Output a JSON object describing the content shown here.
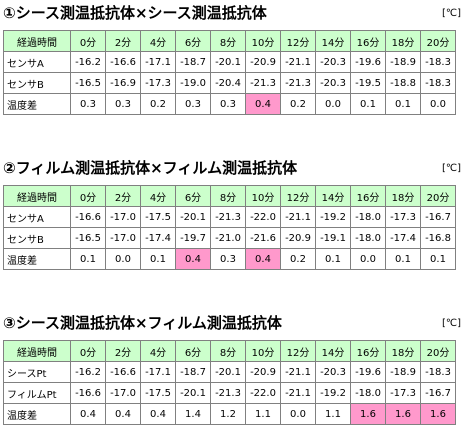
{
  "colors": {
    "header_bg": "#ccffcc",
    "highlight_bg": "#ff99cc",
    "border": "#808080"
  },
  "sections": [
    {
      "title": "①シース測温抵抗体×シース測温抵抗体",
      "unit": "[℃]",
      "header": [
        "経過時間",
        "0分",
        "2分",
        "4分",
        "6分",
        "8分",
        "10分",
        "12分",
        "14分",
        "16分",
        "18分",
        "20分"
      ],
      "rows": [
        {
          "label": "センサA",
          "values": [
            "-16.2",
            "-16.6",
            "-17.1",
            "-18.7",
            "-20.1",
            "-20.9",
            "-21.1",
            "-20.3",
            "-19.6",
            "-18.9",
            "-18.3"
          ]
        },
        {
          "label": "センサB",
          "values": [
            "-16.5",
            "-16.9",
            "-17.3",
            "-19.0",
            "-20.4",
            "-21.3",
            "-21.3",
            "-20.3",
            "-19.5",
            "-18.8",
            "-18.3"
          ]
        },
        {
          "label": "温度差",
          "values": [
            "0.3",
            "0.3",
            "0.2",
            "0.3",
            "0.3",
            "0.4",
            "0.2",
            "0.0",
            "0.1",
            "0.1",
            "0.0"
          ],
          "highlight": [
            5
          ]
        }
      ]
    },
    {
      "title": "②フィルム測温抵抗体×フィルム測温抵抗体",
      "unit": "[℃]",
      "header": [
        "経過時間",
        "0分",
        "2分",
        "4分",
        "6分",
        "8分",
        "10分",
        "12分",
        "14分",
        "16分",
        "18分",
        "20分"
      ],
      "rows": [
        {
          "label": "センサA",
          "values": [
            "-16.6",
            "-17.0",
            "-17.5",
            "-20.1",
            "-21.3",
            "-22.0",
            "-21.1",
            "-19.2",
            "-18.0",
            "-17.3",
            "-16.7"
          ]
        },
        {
          "label": "センサB",
          "values": [
            "-16.5",
            "-17.0",
            "-17.4",
            "-19.7",
            "-21.0",
            "-21.6",
            "-20.9",
            "-19.1",
            "-18.0",
            "-17.4",
            "-16.8"
          ]
        },
        {
          "label": "温度差",
          "values": [
            "0.1",
            "0.0",
            "0.1",
            "0.4",
            "0.3",
            "0.4",
            "0.2",
            "0.1",
            "0.0",
            "0.1",
            "0.1"
          ],
          "highlight": [
            3,
            5
          ]
        }
      ]
    },
    {
      "title": "③シース測温抵抗体×フィルム測温抵抗体",
      "unit": "[℃]",
      "header": [
        "経過時間",
        "0分",
        "2分",
        "4分",
        "6分",
        "8分",
        "10分",
        "12分",
        "14分",
        "16分",
        "18分",
        "20分"
      ],
      "rows": [
        {
          "label": "シースPt",
          "values": [
            "-16.2",
            "-16.6",
            "-17.1",
            "-18.7",
            "-20.1",
            "-20.9",
            "-21.1",
            "-20.3",
            "-19.6",
            "-18.9",
            "-18.3"
          ]
        },
        {
          "label": "フィルムPt",
          "values": [
            "-16.6",
            "-17.0",
            "-17.5",
            "-20.1",
            "-21.3",
            "-22.0",
            "-21.1",
            "-19.2",
            "-18.0",
            "-17.3",
            "-16.7"
          ]
        },
        {
          "label": "温度差",
          "values": [
            "0.4",
            "0.4",
            "0.4",
            "1.4",
            "1.2",
            "1.1",
            "0.0",
            "1.1",
            "1.6",
            "1.6",
            "1.6"
          ],
          "highlight": [
            8,
            9,
            10
          ]
        }
      ]
    }
  ]
}
